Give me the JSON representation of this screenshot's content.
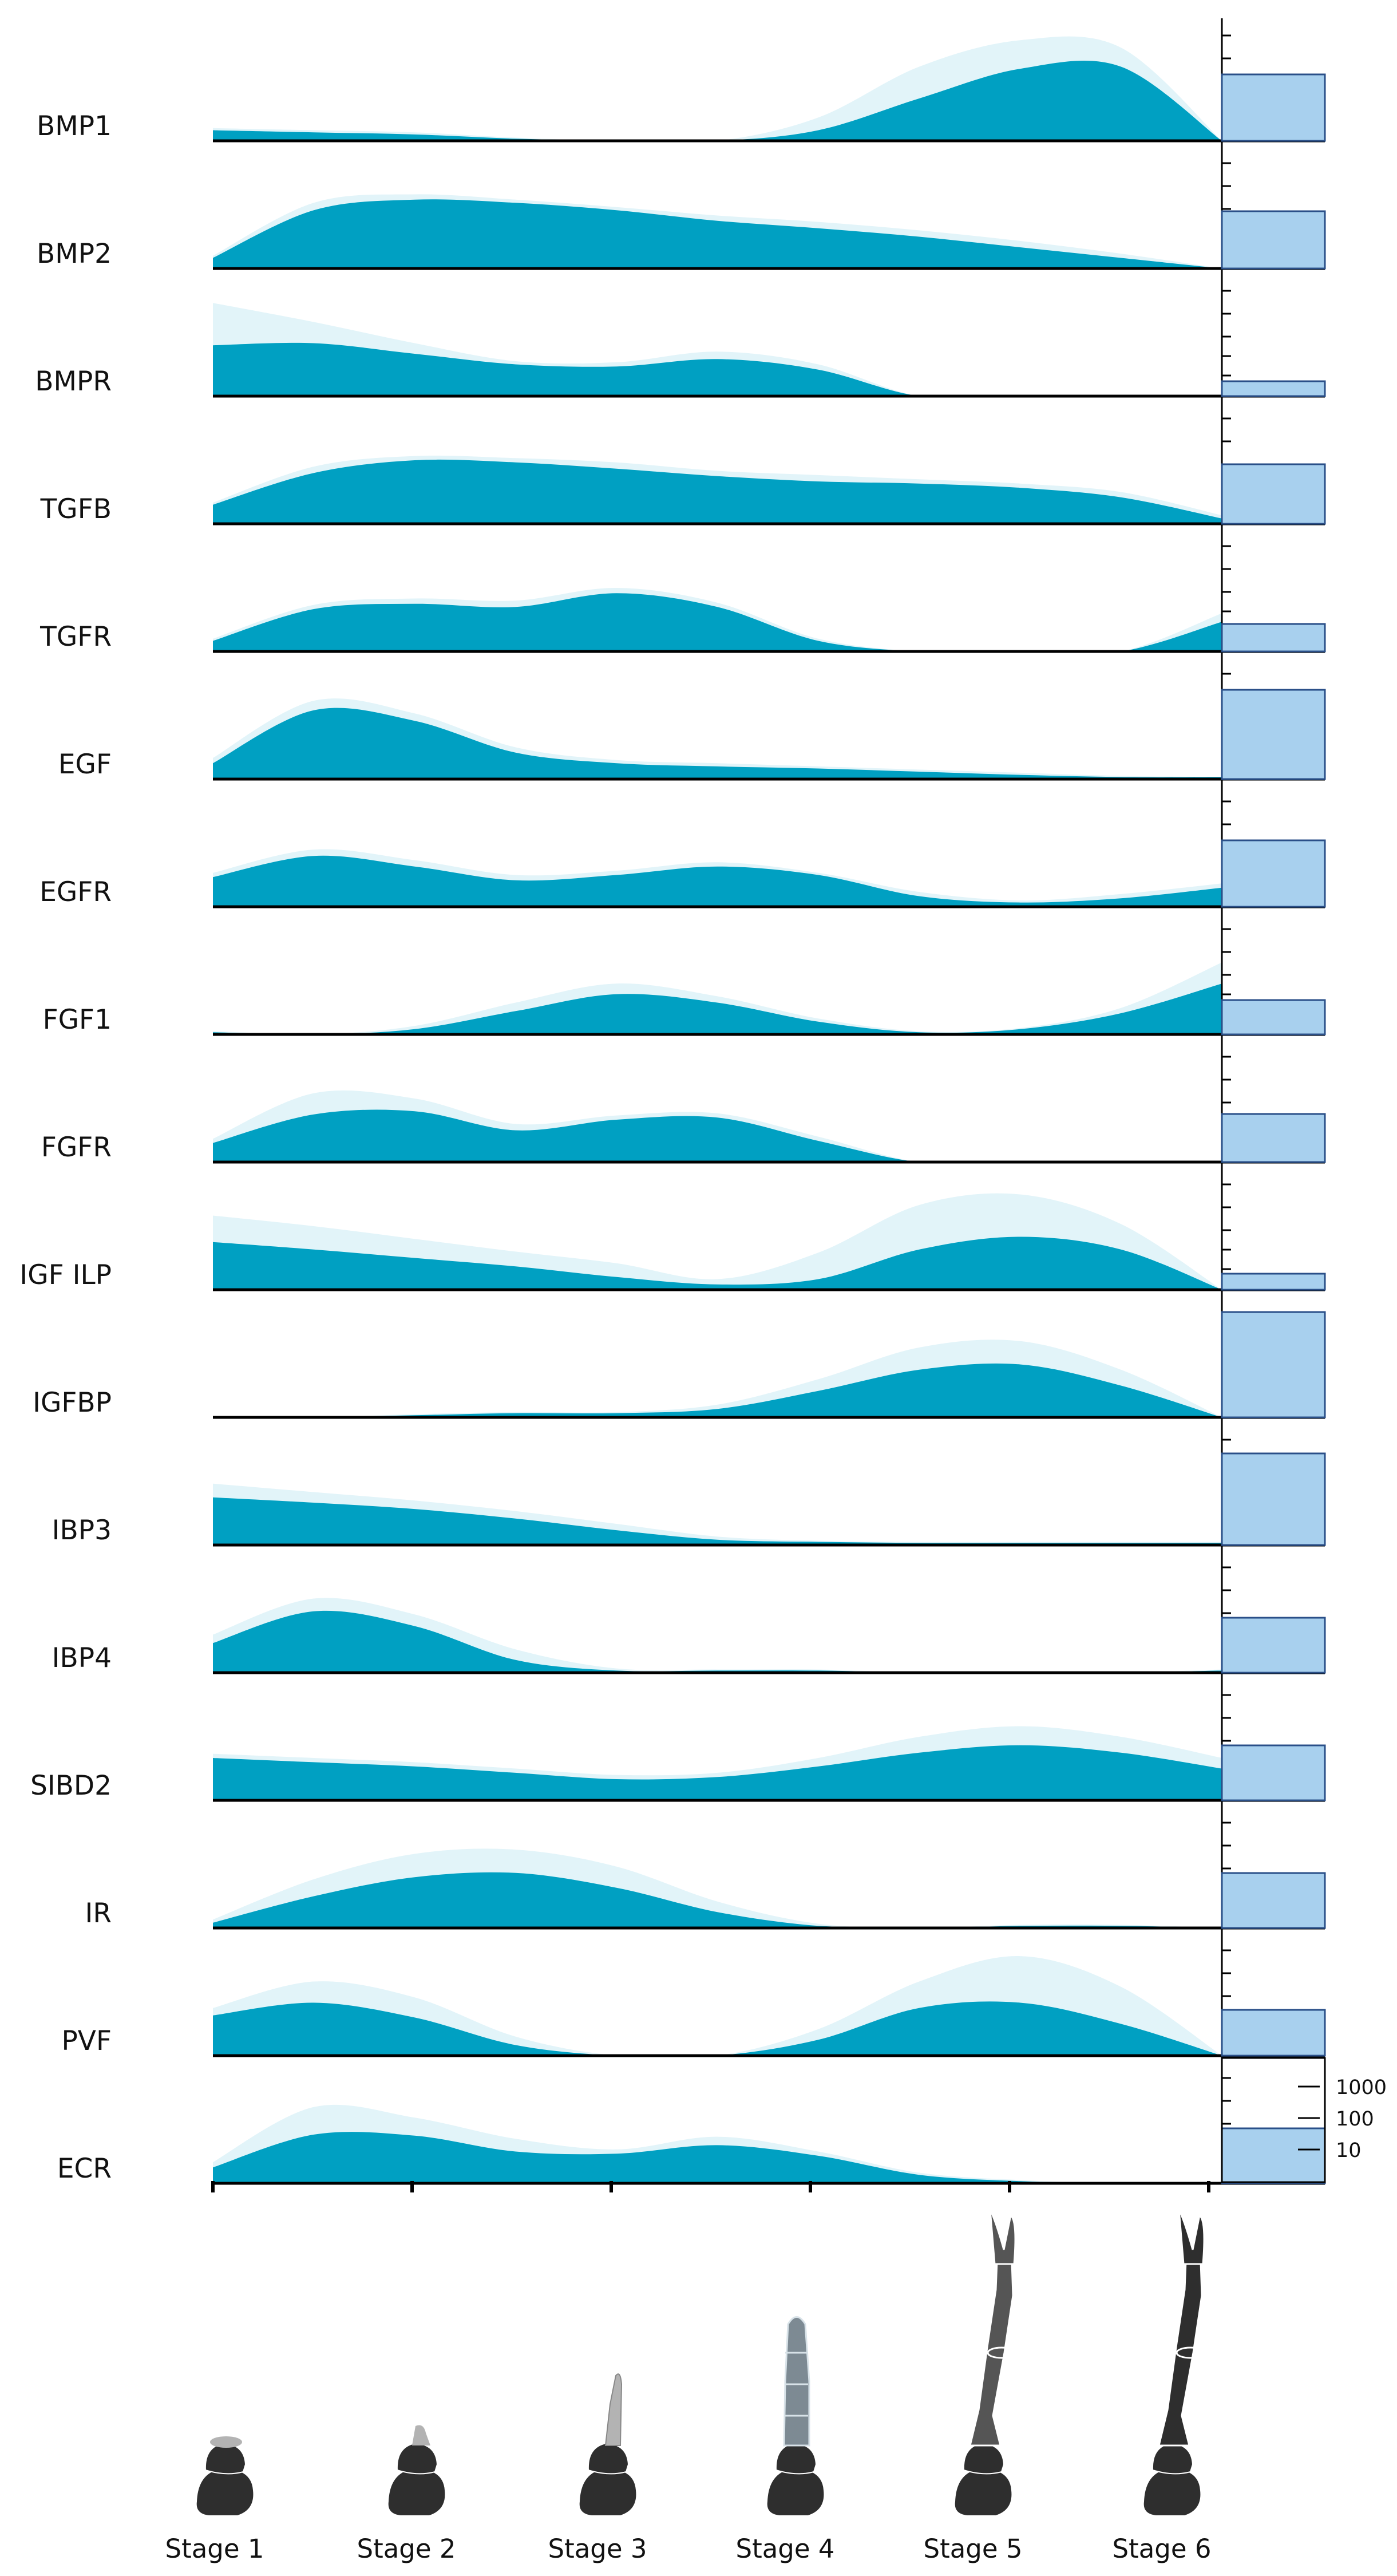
{
  "colors": {
    "dark_fill": "#00a0c2",
    "light_fill": "#e2f4f9",
    "bar_fill": "#a8d0ee",
    "bar_stroke": "#2a4f88",
    "axis": "#000000",
    "limb_dark": "#2e2e2e",
    "limb_mid": "#555555",
    "limb_light": "#b3b3b3",
    "limb_blue": "#7d8a93"
  },
  "chart_data": {
    "type": "area",
    "description_of_axes": "x = developmental stage (1-6), y = relative expression; right column = bar per gene on scale 10 / 100 / 1000",
    "stages": [
      "Stage 1",
      "Stage 2",
      "Stage 3",
      "Stage 4",
      "Stage 5",
      "Stage 6"
    ],
    "scale_ticks": [
      "1000",
      "100",
      "10"
    ],
    "series": [
      {
        "name": "BMP1",
        "dark": [
          0.1,
          0.08,
          0.06,
          0.02,
          0.0,
          0.0,
          0.1,
          0.4,
          0.68,
          0.7,
          0.0
        ],
        "light": [
          0.12,
          0.1,
          0.08,
          0.03,
          0.0,
          0.0,
          0.22,
          0.7,
          0.95,
          0.88,
          0.0
        ],
        "bar": 0.58
      },
      {
        "name": "BMP2",
        "dark": [
          0.1,
          0.55,
          0.65,
          0.62,
          0.55,
          0.45,
          0.38,
          0.3,
          0.2,
          0.1,
          0.0
        ],
        "light": [
          0.12,
          0.62,
          0.7,
          0.65,
          0.58,
          0.5,
          0.44,
          0.36,
          0.26,
          0.14,
          0.0
        ],
        "bar": 0.5
      },
      {
        "name": "BMPR",
        "dark": [
          0.48,
          0.5,
          0.4,
          0.3,
          0.28,
          0.35,
          0.25,
          0.0,
          0.0,
          0.0,
          0.0
        ],
        "light": [
          0.88,
          0.7,
          0.5,
          0.33,
          0.32,
          0.42,
          0.3,
          0.0,
          0.0,
          0.0,
          0.0
        ],
        "bar": 0.13
      },
      {
        "name": "TGFB",
        "dark": [
          0.18,
          0.48,
          0.6,
          0.58,
          0.52,
          0.45,
          0.4,
          0.38,
          0.34,
          0.25,
          0.05
        ],
        "light": [
          0.2,
          0.54,
          0.64,
          0.62,
          0.58,
          0.5,
          0.46,
          0.42,
          0.38,
          0.3,
          0.08
        ],
        "bar": 0.52
      },
      {
        "name": "TGFR",
        "dark": [
          0.1,
          0.4,
          0.45,
          0.42,
          0.55,
          0.42,
          0.1,
          0.0,
          0.0,
          0.0,
          0.28
        ],
        "light": [
          0.12,
          0.44,
          0.5,
          0.48,
          0.6,
          0.46,
          0.12,
          0.0,
          0.0,
          0.0,
          0.36
        ],
        "bar": 0.24
      },
      {
        "name": "EGF",
        "dark": [
          0.15,
          0.65,
          0.55,
          0.25,
          0.15,
          0.12,
          0.1,
          0.07,
          0.04,
          0.02,
          0.02
        ],
        "light": [
          0.2,
          0.74,
          0.62,
          0.3,
          0.18,
          0.15,
          0.12,
          0.09,
          0.06,
          0.03,
          0.02
        ],
        "bar": 0.78
      },
      {
        "name": "EGFR",
        "dark": [
          0.28,
          0.48,
          0.38,
          0.25,
          0.3,
          0.38,
          0.3,
          0.1,
          0.04,
          0.08,
          0.18
        ],
        "light": [
          0.32,
          0.54,
          0.44,
          0.3,
          0.34,
          0.42,
          0.32,
          0.14,
          0.06,
          0.12,
          0.22
        ],
        "bar": 0.58
      },
      {
        "name": "FGF1",
        "dark": [
          0.02,
          0.0,
          0.05,
          0.22,
          0.38,
          0.3,
          0.12,
          0.02,
          0.05,
          0.2,
          0.48
        ],
        "light": [
          0.03,
          0.0,
          0.08,
          0.3,
          0.48,
          0.36,
          0.15,
          0.03,
          0.06,
          0.25,
          0.68
        ],
        "bar": 0.3
      },
      {
        "name": "FGFR",
        "dark": [
          0.18,
          0.45,
          0.48,
          0.3,
          0.4,
          0.42,
          0.2,
          0.0,
          0.0,
          0.0,
          0.0
        ],
        "light": [
          0.22,
          0.65,
          0.6,
          0.36,
          0.44,
          0.46,
          0.24,
          0.0,
          0.0,
          0.0,
          0.0
        ],
        "bar": 0.42
      },
      {
        "name": "IGF ILP",
        "dark": [
          0.45,
          0.38,
          0.3,
          0.22,
          0.12,
          0.05,
          0.1,
          0.38,
          0.5,
          0.38,
          0.0
        ],
        "light": [
          0.7,
          0.6,
          0.48,
          0.36,
          0.25,
          0.1,
          0.35,
          0.8,
          0.9,
          0.62,
          0.0
        ],
        "bar": 0.14
      },
      {
        "name": "IGFBP",
        "dark": [
          0.0,
          0.0,
          0.02,
          0.04,
          0.04,
          0.08,
          0.25,
          0.45,
          0.5,
          0.3,
          0.0
        ],
        "light": [
          0.0,
          0.0,
          0.03,
          0.05,
          0.05,
          0.12,
          0.36,
          0.66,
          0.72,
          0.45,
          0.0
        ],
        "bar": 0.92
      },
      {
        "name": "IBP3",
        "dark": [
          0.45,
          0.4,
          0.34,
          0.25,
          0.14,
          0.05,
          0.03,
          0.02,
          0.02,
          0.02,
          0.02
        ],
        "light": [
          0.58,
          0.5,
          0.42,
          0.32,
          0.2,
          0.08,
          0.04,
          0.03,
          0.03,
          0.03,
          0.03
        ],
        "bar": 0.8
      },
      {
        "name": "IBP4",
        "dark": [
          0.28,
          0.58,
          0.44,
          0.12,
          0.02,
          0.02,
          0.02,
          0.0,
          0.0,
          0.0,
          0.02
        ],
        "light": [
          0.36,
          0.7,
          0.55,
          0.22,
          0.04,
          0.03,
          0.03,
          0.0,
          0.0,
          0.0,
          0.03
        ],
        "bar": 0.48
      },
      {
        "name": "SIBD2",
        "dark": [
          0.4,
          0.36,
          0.32,
          0.26,
          0.2,
          0.22,
          0.32,
          0.45,
          0.52,
          0.45,
          0.3
        ],
        "light": [
          0.44,
          0.4,
          0.36,
          0.3,
          0.24,
          0.26,
          0.4,
          0.6,
          0.7,
          0.6,
          0.4
        ],
        "bar": 0.48
      },
      {
        "name": "IR",
        "dark": [
          0.05,
          0.3,
          0.48,
          0.52,
          0.38,
          0.15,
          0.02,
          0.0,
          0.02,
          0.02,
          0.0
        ],
        "light": [
          0.08,
          0.46,
          0.7,
          0.74,
          0.58,
          0.25,
          0.04,
          0.0,
          0.03,
          0.03,
          0.0
        ],
        "bar": 0.48
      },
      {
        "name": "PVF",
        "dark": [
          0.38,
          0.5,
          0.36,
          0.1,
          0.0,
          0.0,
          0.15,
          0.45,
          0.5,
          0.3,
          0.0
        ],
        "light": [
          0.45,
          0.7,
          0.55,
          0.18,
          0.0,
          0.0,
          0.25,
          0.7,
          0.94,
          0.65,
          0.0
        ],
        "bar": 0.4
      },
      {
        "name": "ECR",
        "dark": [
          0.15,
          0.46,
          0.45,
          0.3,
          0.28,
          0.36,
          0.26,
          0.08,
          0.02,
          0.0,
          0.0
        ],
        "light": [
          0.2,
          0.72,
          0.62,
          0.42,
          0.32,
          0.44,
          0.3,
          0.1,
          0.03,
          0.0,
          0.0
        ],
        "bar": 0.48
      }
    ]
  }
}
